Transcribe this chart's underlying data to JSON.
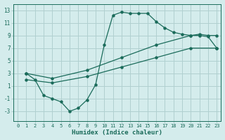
{
  "xlabel": "Humidex (Indice chaleur)",
  "xlim": [
    -0.5,
    23.5
  ],
  "ylim": [
    -4.5,
    14.0
  ],
  "xticks": [
    0,
    1,
    2,
    3,
    4,
    5,
    6,
    7,
    8,
    9,
    10,
    11,
    12,
    13,
    14,
    15,
    16,
    17,
    18,
    19,
    20,
    21,
    22,
    23
  ],
  "yticks": [
    -3,
    -1,
    1,
    3,
    5,
    7,
    9,
    11,
    13
  ],
  "bg_color": "#d4ecec",
  "grid_color": "#b0d0d0",
  "line_color": "#1a6b5a",
  "curve1_x": [
    1,
    2,
    3,
    4,
    5,
    6,
    7,
    8,
    9,
    10,
    11,
    12,
    13,
    14,
    15,
    16,
    17,
    18,
    19,
    20,
    21,
    22,
    23
  ],
  "curve1_y": [
    3,
    2.0,
    -0.5,
    -1.0,
    -1.5,
    -3.0,
    -2.5,
    -1.2,
    1.2,
    7.5,
    12.2,
    12.7,
    12.5,
    12.5,
    12.5,
    11.2,
    10.2,
    9.5,
    9.2,
    9.0,
    9.0,
    8.8,
    7.0
  ],
  "diag_upper_x": [
    1,
    4,
    8,
    12,
    16,
    20,
    21,
    22,
    23
  ],
  "diag_upper_y": [
    3,
    2.2,
    3.5,
    5.5,
    7.5,
    9.0,
    9.2,
    9.0,
    9.0
  ],
  "diag_lower_x": [
    1,
    4,
    8,
    12,
    16,
    20,
    23
  ],
  "diag_lower_y": [
    2,
    1.5,
    2.5,
    4.0,
    5.5,
    7.0,
    7.0
  ]
}
